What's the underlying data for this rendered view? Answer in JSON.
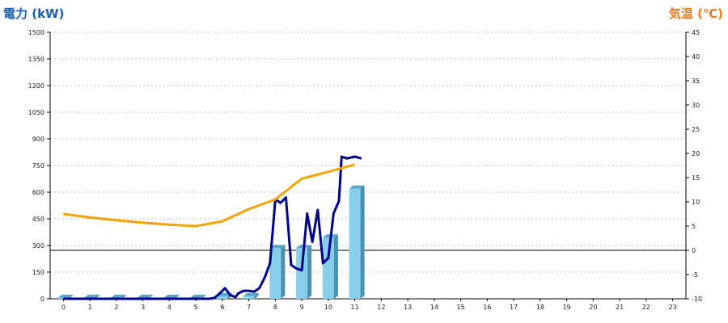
{
  "chart_data": {
    "type": "bar",
    "title": "",
    "left_axis_label": "電力 (kW)",
    "right_axis_label": "気温 (℃)",
    "x_categories": [
      "0",
      "1",
      "2",
      "3",
      "4",
      "5",
      "6",
      "7",
      "8",
      "9",
      "10",
      "11",
      "12",
      "13",
      "14",
      "15",
      "16",
      "17",
      "18",
      "19",
      "20",
      "21",
      "22",
      "23"
    ],
    "y_left": {
      "min": 0,
      "max": 1500,
      "ticks": [
        0,
        150,
        300,
        450,
        600,
        750,
        900,
        1050,
        1200,
        1350,
        1500
      ]
    },
    "y_right": {
      "min": -10,
      "max": 45,
      "ticks": [
        -10,
        -5,
        0,
        5,
        10,
        15,
        20,
        25,
        30,
        35,
        40,
        45
      ]
    },
    "grid": true,
    "series": [
      {
        "kind": "bar",
        "axis": "left",
        "color": "#87ceeb",
        "values": [
          5,
          5,
          5,
          5,
          5,
          5,
          15,
          15,
          285,
          285,
          345,
          620
        ]
      },
      {
        "kind": "line",
        "axis": "left",
        "color": "#00008b",
        "points": [
          [
            0,
            0
          ],
          [
            1,
            0
          ],
          [
            2,
            0
          ],
          [
            3,
            0
          ],
          [
            4,
            0
          ],
          [
            5,
            0
          ],
          [
            5.5,
            0
          ],
          [
            5.7,
            5
          ],
          [
            5.9,
            30
          ],
          [
            6.1,
            60
          ],
          [
            6.3,
            20
          ],
          [
            6.5,
            10
          ],
          [
            6.6,
            30
          ],
          [
            6.8,
            45
          ],
          [
            7,
            45
          ],
          [
            7.2,
            40
          ],
          [
            7.4,
            60
          ],
          [
            7.6,
            120
          ],
          [
            7.8,
            200
          ],
          [
            8,
            560
          ],
          [
            8.2,
            540
          ],
          [
            8.4,
            570
          ],
          [
            8.6,
            190
          ],
          [
            8.8,
            170
          ],
          [
            9,
            160
          ],
          [
            9.2,
            480
          ],
          [
            9.4,
            320
          ],
          [
            9.6,
            500
          ],
          [
            9.8,
            200
          ],
          [
            10,
            230
          ],
          [
            10.2,
            480
          ],
          [
            10.4,
            550
          ],
          [
            10.5,
            800
          ],
          [
            10.7,
            790
          ],
          [
            11,
            800
          ],
          [
            11.25,
            790
          ]
        ]
      },
      {
        "kind": "line",
        "axis": "right",
        "color": "#f5a300",
        "points": [
          [
            0,
            7.5
          ],
          [
            1,
            6.8
          ],
          [
            2,
            6.2
          ],
          [
            3,
            5.7
          ],
          [
            4,
            5.3
          ],
          [
            5,
            5
          ],
          [
            6,
            6
          ],
          [
            7,
            8.5
          ],
          [
            8,
            10.5
          ],
          [
            9,
            14.8
          ],
          [
            10,
            16.2
          ],
          [
            11,
            17.7
          ]
        ]
      }
    ]
  }
}
